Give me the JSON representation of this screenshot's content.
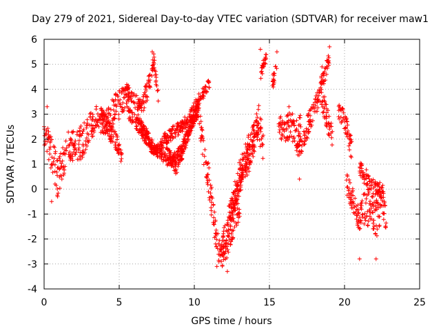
{
  "chart_data": {
    "type": "scatter",
    "title": "Day 279 of 2021, Sidereal Day-to-day VTEC variation (SDTVAR) for receiver maw1",
    "xlabel": "GPS time / hours",
    "ylabel": "SDTVAR / TECUs",
    "xlim": [
      0,
      25
    ],
    "ylim": [
      -4,
      6
    ],
    "xticks": [
      0,
      5,
      10,
      15,
      20,
      25
    ],
    "yticks": [
      -4,
      -3,
      -2,
      -1,
      0,
      1,
      2,
      3,
      4,
      5,
      6
    ],
    "grid": true,
    "marker": "+",
    "series": [
      {
        "name": "SDTVAR",
        "color": "#ff0000",
        "bands": [
          {
            "x": [
              0.0,
              0.3,
              0.6,
              0.9,
              1.2,
              1.5
            ],
            "y": [
              2.3,
              1.8,
              1.2,
              0.4,
              1.0,
              1.5
            ],
            "spread": [
              1.0,
              1.2,
              1.6,
              1.5,
              1.4,
              1.2
            ]
          },
          {
            "x": [
              1.5,
              2.0,
              2.5,
              3.0,
              3.5,
              4.0,
              4.5,
              5.0,
              5.3,
              5.6
            ],
            "y": [
              1.8,
              1.7,
              1.9,
              2.4,
              2.9,
              2.6,
              3.0,
              3.4,
              3.6,
              3.8
            ],
            "spread": [
              1.2,
              1.3,
              1.4,
              1.2,
              1.0,
              1.2,
              1.3,
              1.2,
              1.0,
              0.9
            ]
          },
          {
            "x": [
              3.8,
              4.3,
              4.8,
              5.2
            ],
            "y": [
              3.0,
              2.4,
              1.9,
              1.2
            ],
            "spread": [
              0.7,
              0.8,
              0.7,
              0.5
            ]
          },
          {
            "x": [
              5.5,
              6.0,
              6.5,
              7.0,
              7.3,
              7.6
            ],
            "y": [
              3.9,
              3.6,
              3.3,
              4.2,
              5.2,
              3.6
            ],
            "spread": [
              0.7,
              0.6,
              0.7,
              0.9,
              0.5,
              0.8
            ]
          },
          {
            "x": [
              5.6,
              6.2,
              6.8,
              7.3,
              7.8,
              8.3,
              8.8,
              9.3,
              9.8,
              10.3
            ],
            "y": [
              3.1,
              2.6,
              2.0,
              1.6,
              1.4,
              1.1,
              1.3,
              1.8,
              2.6,
              3.4
            ],
            "spread": [
              0.5,
              0.5,
              0.5,
              0.5,
              0.4,
              0.5,
              0.5,
              0.5,
              0.5,
              0.5
            ]
          },
          {
            "x": [
              6.2,
              6.8,
              7.4,
              8.0,
              8.6,
              9.2,
              9.8,
              10.4,
              11.0
            ],
            "y": [
              2.8,
              2.2,
              1.5,
              1.9,
              2.3,
              2.5,
              3.0,
              3.7,
              4.2
            ],
            "spread": [
              0.5,
              0.5,
              0.4,
              0.5,
              0.5,
              0.5,
              0.5,
              0.5,
              0.4
            ]
          },
          {
            "x": [
              8.0,
              8.4,
              8.8,
              9.3,
              9.8,
              10.3
            ],
            "y": [
              2.2,
              1.3,
              0.8,
              1.6,
              2.6,
              3.2
            ],
            "spread": [
              0.5,
              0.5,
              0.5,
              0.5,
              0.5,
              0.5
            ]
          },
          {
            "x": [
              10.3,
              10.6,
              11.0,
              11.3,
              11.6,
              11.9,
              12.2,
              12.5,
              12.8,
              13.1
            ],
            "y": [
              3.0,
              1.6,
              0.2,
              -1.2,
              -2.4,
              -2.8,
              -2.3,
              -1.6,
              -1.0,
              -0.4
            ],
            "spread": [
              0.8,
              1.0,
              1.3,
              1.3,
              1.0,
              0.7,
              0.8,
              1.0,
              1.1,
              1.2
            ]
          },
          {
            "x": [
              11.8,
              12.3,
              12.8,
              13.3,
              13.8,
              14.3,
              14.6
            ],
            "y": [
              -2.4,
              -1.2,
              0.2,
              0.9,
              1.7,
              2.6,
              1.5
            ],
            "spread": [
              0.8,
              1.2,
              1.4,
              1.5,
              1.7,
              1.4,
              1.6
            ]
          },
          {
            "x": [
              12.3,
              12.7,
              13.1,
              13.5,
              13.9,
              14.3
            ],
            "y": [
              -1.0,
              -0.3,
              0.5,
              1.2,
              2.0,
              2.8
            ],
            "spread": [
              0.7,
              0.8,
              0.9,
              1.0,
              1.2,
              1.3
            ]
          },
          {
            "x": [
              14.4,
              14.6,
              14.8
            ],
            "y": [
              4.6,
              5.0,
              5.3
            ],
            "spread": [
              0.5,
              0.5,
              0.4
            ]
          },
          {
            "x": [
              15.2,
              15.5
            ],
            "y": [
              4.2,
              4.9
            ],
            "spread": [
              0.6,
              0.6
            ]
          },
          {
            "x": [
              15.6,
              16.0,
              16.4,
              16.8,
              17.1
            ],
            "y": [
              2.5,
              2.3,
              2.6,
              2.2,
              2.5
            ],
            "spread": [
              1.0,
              0.9,
              1.2,
              1.3,
              1.1
            ]
          },
          {
            "x": [
              16.8,
              17.2,
              17.6,
              18.0,
              18.4,
              18.8,
              19.2
            ],
            "y": [
              1.4,
              1.9,
              2.6,
              3.3,
              3.8,
              3.0,
              2.0
            ],
            "spread": [
              0.6,
              0.8,
              0.9,
              0.9,
              0.9,
              1.0,
              0.9
            ]
          },
          {
            "x": [
              18.3,
              18.7,
              19.0
            ],
            "y": [
              4.0,
              4.6,
              5.3
            ],
            "spread": [
              0.6,
              0.6,
              0.5
            ]
          },
          {
            "x": [
              19.6,
              19.9,
              20.2,
              20.5
            ],
            "y": [
              3.1,
              2.9,
              2.3,
              1.5
            ],
            "spread": [
              0.6,
              0.7,
              0.8,
              0.9
            ]
          },
          {
            "x": [
              20.1,
              20.5,
              20.9,
              21.3,
              21.7,
              22.1,
              22.5,
              22.8
            ],
            "y": [
              0.3,
              -0.4,
              -1.2,
              -0.8,
              -0.8,
              -1.3,
              -0.4,
              -1.2
            ],
            "spread": [
              0.8,
              1.0,
              1.2,
              1.3,
              1.4,
              1.4,
              1.3,
              1.1
            ]
          },
          {
            "x": [
              21.0,
              21.4,
              21.8,
              22.2,
              22.6
            ],
            "y": [
              0.8,
              0.5,
              0.1,
              -0.2,
              0.2
            ],
            "spread": [
              0.6,
              0.7,
              0.8,
              0.9,
              0.9
            ]
          }
        ],
        "points": [
          {
            "x": 0.2,
            "y": 3.3
          },
          {
            "x": 0.5,
            "y": -0.5
          },
          {
            "x": 0.9,
            "y": -0.3
          },
          {
            "x": 7.2,
            "y": 5.5
          },
          {
            "x": 15.5,
            "y": 5.5
          },
          {
            "x": 19.0,
            "y": 5.7
          },
          {
            "x": 17.0,
            "y": 0.4
          },
          {
            "x": 21.0,
            "y": -2.8
          },
          {
            "x": 22.1,
            "y": -2.8
          },
          {
            "x": 12.2,
            "y": -3.3
          },
          {
            "x": 11.5,
            "y": -3.1
          },
          {
            "x": 14.4,
            "y": 5.6
          },
          {
            "x": 18.5,
            "y": 4.9
          },
          {
            "x": 16.3,
            "y": 3.3
          }
        ]
      }
    ]
  }
}
